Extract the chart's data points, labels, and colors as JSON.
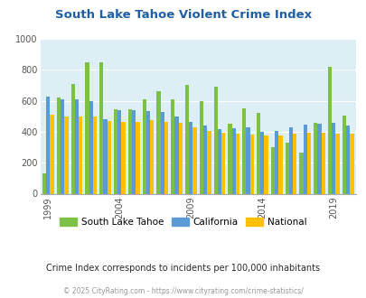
{
  "title": "South Lake Tahoe Violent Crime Index",
  "subtitle": "Crime Index corresponds to incidents per 100,000 inhabitants",
  "footer": "© 2025 CityRating.com - https://www.cityrating.com/crime-statistics/",
  "years": [
    1999,
    2000,
    2001,
    2002,
    2003,
    2004,
    2005,
    2006,
    2007,
    2008,
    2009,
    2010,
    2011,
    2012,
    2013,
    2014,
    2015,
    2016,
    2017,
    2018,
    2019,
    2020
  ],
  "slt": [
    130,
    620,
    710,
    850,
    850,
    545,
    545,
    610,
    660,
    610,
    700,
    600,
    690,
    450,
    550,
    520,
    300,
    330,
    265,
    460,
    820,
    505
  ],
  "ca": [
    625,
    610,
    610,
    595,
    480,
    540,
    540,
    535,
    530,
    500,
    465,
    440,
    415,
    425,
    430,
    400,
    405,
    430,
    445,
    450,
    455,
    440
  ],
  "nat": [
    510,
    500,
    500,
    500,
    470,
    465,
    465,
    475,
    465,
    455,
    430,
    405,
    395,
    390,
    380,
    375,
    375,
    390,
    395,
    395,
    390,
    385
  ],
  "slt_color": "#7cc145",
  "ca_color": "#5b9bd5",
  "nat_color": "#ffc000",
  "bg_color": "#ddeef4",
  "ylim": [
    0,
    1000
  ],
  "yticks": [
    0,
    200,
    400,
    600,
    800,
    1000
  ],
  "xtick_years": [
    1999,
    2004,
    2009,
    2014,
    2019
  ],
  "title_color": "#1f5fa6",
  "subtitle_color": "#2a2a2a",
  "footer_color": "#999999",
  "bar_width": 0.27
}
